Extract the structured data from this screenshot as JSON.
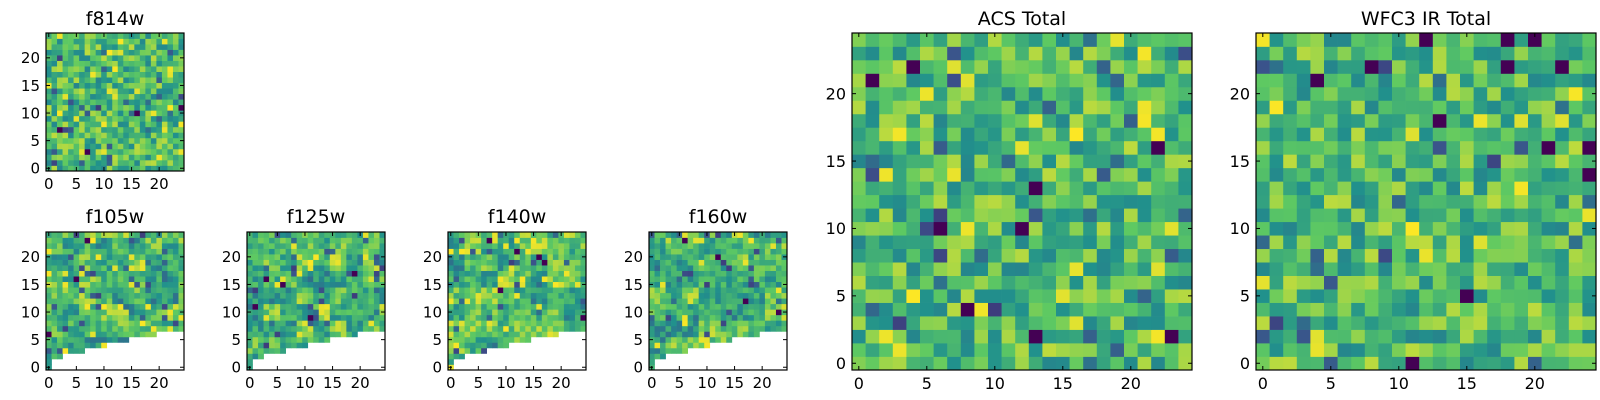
{
  "figure": {
    "layout": "two rows of small filter cutouts on the left, two large total-image panels on the right",
    "colormap": "viridis",
    "colormap_colors": [
      "#440154",
      "#3b528b",
      "#21918c",
      "#5ec962",
      "#fde725"
    ]
  },
  "chart_data": [
    {
      "type": "heatmap",
      "title": "f814w",
      "grid_size": 25,
      "xticks": [
        "0",
        "5",
        "10",
        "15",
        "20"
      ],
      "yticks": [
        "0",
        "5",
        "10",
        "15",
        "20"
      ],
      "xlim": [
        -0.5,
        24.5
      ],
      "ylim": [
        -0.5,
        24.5
      ],
      "value_range": [
        0,
        1
      ],
      "mask": "none",
      "texture": "fine-noisy",
      "seed": 11
    },
    {
      "type": "heatmap",
      "title": "f105w",
      "grid_size": 25,
      "xticks": [
        "0",
        "5",
        "10",
        "15",
        "20"
      ],
      "yticks": [
        "0",
        "5",
        "10",
        "15",
        "20"
      ],
      "xlim": [
        -0.5,
        24.5
      ],
      "ylim": [
        -0.5,
        24.5
      ],
      "value_range": [
        0,
        1
      ],
      "mask": "lower-right wedge blank (no data)",
      "texture": "blocky",
      "seed": 23
    },
    {
      "type": "heatmap",
      "title": "f125w",
      "grid_size": 25,
      "xticks": [
        "0",
        "5",
        "10",
        "15",
        "20"
      ],
      "yticks": [
        "0",
        "5",
        "10",
        "15",
        "20"
      ],
      "xlim": [
        -0.5,
        24.5
      ],
      "ylim": [
        -0.5,
        24.5
      ],
      "value_range": [
        0,
        1
      ],
      "mask": "lower-right wedge blank (no data)",
      "texture": "blocky",
      "seed": 37
    },
    {
      "type": "heatmap",
      "title": "f140w",
      "grid_size": 25,
      "xticks": [
        "0",
        "5",
        "10",
        "15",
        "20"
      ],
      "yticks": [
        "0",
        "5",
        "10",
        "15",
        "20"
      ],
      "xlim": [
        -0.5,
        24.5
      ],
      "ylim": [
        -0.5,
        24.5
      ],
      "value_range": [
        0,
        1
      ],
      "mask": "lower-right wedge blank (no data)",
      "texture": "blocky",
      "seed": 41
    },
    {
      "type": "heatmap",
      "title": "f160w",
      "grid_size": 25,
      "xticks": [
        "0",
        "5",
        "10",
        "15",
        "20"
      ],
      "yticks": [
        "0",
        "5",
        "10",
        "15",
        "20"
      ],
      "xlim": [
        -0.5,
        24.5
      ],
      "ylim": [
        -0.5,
        24.5
      ],
      "value_range": [
        0,
        1
      ],
      "mask": "lower-right wedge blank (no data)",
      "texture": "blocky",
      "seed": 53
    },
    {
      "type": "heatmap",
      "title": "ACS Total",
      "grid_size": 25,
      "xticks": [
        "0",
        "5",
        "10",
        "15",
        "20"
      ],
      "yticks": [
        "0",
        "5",
        "10",
        "15",
        "20"
      ],
      "xlim": [
        -0.5,
        24.5
      ],
      "ylim": [
        -0.5,
        24.5
      ],
      "value_range": [
        0,
        1
      ],
      "mask": "none",
      "texture": "noisy",
      "seed": 67
    },
    {
      "type": "heatmap",
      "title": "WFC3 IR Total",
      "grid_size": 25,
      "xticks": [
        "0",
        "5",
        "10",
        "15",
        "20"
      ],
      "yticks": [
        "0",
        "5",
        "10",
        "15",
        "20"
      ],
      "xlim": [
        -0.5,
        24.5
      ],
      "ylim": [
        -0.5,
        24.5
      ],
      "value_range": [
        0,
        1
      ],
      "mask": "none",
      "texture": "noisy",
      "seed": 79
    }
  ]
}
